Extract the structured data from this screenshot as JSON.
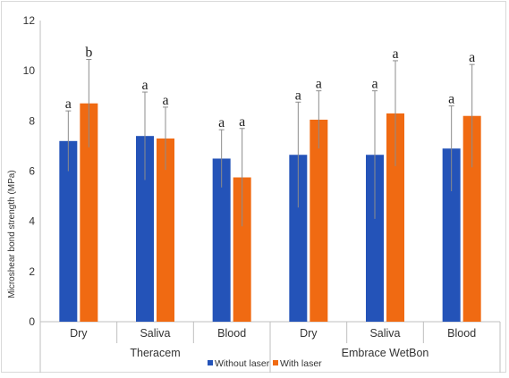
{
  "chart_data": {
    "type": "bar",
    "title": "",
    "xlabel": "",
    "ylabel": "Microshear bond strength (MPa)",
    "ylim": [
      0,
      12
    ],
    "yticks": [
      0,
      2,
      4,
      6,
      8,
      10,
      12
    ],
    "grid": false,
    "legend_position": "bottom",
    "colors": {
      "Without laser": "#2453b8",
      "With laser": "#f06a12"
    },
    "groups": [
      {
        "label": "Theracem",
        "categories": [
          "Dry",
          "Saliva",
          "Blood"
        ]
      },
      {
        "label": "Embrace WetBon",
        "categories": [
          "Dry",
          "Saliva",
          "Blood"
        ]
      }
    ],
    "categories": [
      "Dry",
      "Saliva",
      "Blood",
      "Dry",
      "Saliva",
      "Blood"
    ],
    "series": [
      {
        "name": "Without laser",
        "values": [
          7.2,
          7.4,
          6.5,
          6.65,
          6.65,
          6.9
        ],
        "error": [
          1.2,
          1.75,
          1.15,
          2.1,
          2.55,
          1.7
        ],
        "labels": [
          "a",
          "a",
          "a",
          "a",
          "a",
          "a"
        ]
      },
      {
        "name": "With laser",
        "values": [
          8.7,
          7.3,
          5.75,
          8.05,
          8.3,
          8.2
        ],
        "error": [
          1.75,
          1.25,
          1.95,
          1.15,
          2.1,
          2.05
        ],
        "labels": [
          "b",
          "a",
          "a",
          "a",
          "a",
          "a"
        ]
      }
    ]
  }
}
